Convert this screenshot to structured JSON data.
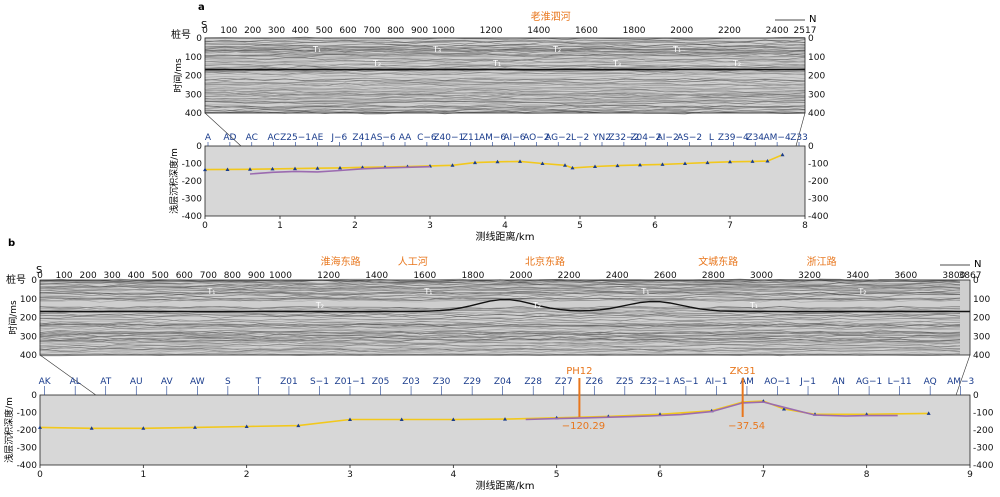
{
  "chart_data": [
    {
      "panel": "a",
      "type": "line",
      "x_axis_label": "测线距离/km",
      "y_axis_label": "浅层沉积深度/m",
      "xlim": [
        0,
        8
      ],
      "ylim": [
        0,
        -400
      ],
      "x_ticks": [
        "0",
        "1",
        "2",
        "3",
        "4",
        "5",
        "6",
        "7",
        "8"
      ],
      "y_ticks": [
        "0",
        "-100",
        "-200",
        "-300",
        "-400"
      ],
      "seismic_axis_label": "时间/ms",
      "seismic_y_ticks": [
        "0",
        "100",
        "200",
        "300",
        "400"
      ],
      "station_axis_label": "桩号",
      "station_ticks": [
        "0",
        "100",
        "200",
        "300",
        "400",
        "500",
        "600",
        "700",
        "800",
        "900",
        "1000",
        "1200",
        "1400",
        "1600",
        "1800",
        "2000",
        "2200",
        "2400",
        "2517"
      ],
      "end_labels": {
        "left": "S",
        "right": "N"
      },
      "road_annotations": [
        {
          "label": "老淮泗河",
          "station": 1450
        }
      ],
      "horizon_labels": [
        "T₁",
        "T₂",
        "T₃",
        "T₁",
        "T₂",
        "T₃",
        "T₁",
        "T₂"
      ],
      "borehole_labels": [
        "A",
        "AD",
        "AC",
        "AC",
        "Z25−1",
        "AE",
        "J−6",
        "Z41",
        "AS−6",
        "AA",
        "C−6",
        "Z40−1",
        "Z11",
        "AM−6",
        "AI−6",
        "AO−2",
        "AG−2",
        "L−2",
        "YN2",
        "Z32−2",
        "Z04−2",
        "AI−2",
        "AS−2",
        "L",
        "Z39−4",
        "Z34",
        "AM−4",
        "Z33"
      ],
      "series": [
        {
          "color": "#f2c81c",
          "x": [
            0,
            0.3,
            0.6,
            0.9,
            1.2,
            1.5,
            1.8,
            2.1,
            2.4,
            2.7,
            3.0,
            3.3,
            3.6,
            3.9,
            4.2,
            4.5,
            4.8,
            4.9,
            5.2,
            5.5,
            5.8,
            6.1,
            6.4,
            6.7,
            7.0,
            7.3,
            7.5,
            7.7
          ],
          "y": [
            -135,
            -134,
            -133,
            -131,
            -129,
            -127,
            -125,
            -122,
            -120,
            -117,
            -114,
            -110,
            -95,
            -90,
            -88,
            -100,
            -110,
            -125,
            -117,
            -112,
            -108,
            -105,
            -100,
            -95,
            -90,
            -88,
            -86,
            -50
          ]
        },
        {
          "color": "#9b6bb0",
          "x": [
            0.6,
            0.9,
            1.2,
            1.5,
            1.8,
            2.1,
            2.4,
            2.7,
            3.0
          ],
          "y": [
            -160,
            -150,
            -145,
            -148,
            -140,
            -130,
            -125,
            -122,
            -118
          ]
        }
      ]
    },
    {
      "panel": "b",
      "type": "line",
      "x_axis_label": "测线距离/km",
      "y_axis_label": "浅层沉积深度/m",
      "xlim": [
        0,
        9
      ],
      "ylim": [
        0,
        -400
      ],
      "x_ticks": [
        "0",
        "1",
        "2",
        "3",
        "4",
        "5",
        "6",
        "7",
        "8",
        "9"
      ],
      "y_ticks": [
        "0",
        "-100",
        "-200",
        "-300",
        "-400"
      ],
      "seismic_axis_label": "时间/ms",
      "seismic_y_ticks": [
        "0",
        "100",
        "200",
        "300",
        "400"
      ],
      "station_axis_label": "桩号",
      "station_ticks": [
        "0",
        "100",
        "200",
        "300",
        "400",
        "500",
        "600",
        "700",
        "800",
        "900",
        "1000",
        "1200",
        "1400",
        "1600",
        "1800",
        "2000",
        "2200",
        "2400",
        "2600",
        "2800",
        "3000",
        "3200",
        "3400",
        "3600",
        "3800",
        "3867"
      ],
      "end_labels": {
        "left": "S",
        "right": "N"
      },
      "road_annotations": [
        {
          "label": "淮海东路",
          "station": 1250
        },
        {
          "label": "人工河",
          "station": 1550
        },
        {
          "label": "北京东路",
          "station": 2100
        },
        {
          "label": "文城东路",
          "station": 2820
        },
        {
          "label": "浙江路",
          "station": 3250
        }
      ],
      "horizon_labels": [
        "T₁",
        "T₂",
        "T₁",
        "T₂",
        "T₁",
        "T₁",
        "T₂"
      ],
      "borehole_labels": [
        "AK",
        "AL",
        "AT",
        "AU",
        "AV",
        "AW",
        "S",
        "T",
        "Z01",
        "S−1",
        "Z01−1",
        "Z05",
        "Z03",
        "Z30",
        "Z29",
        "Z04",
        "Z28",
        "Z27",
        "Z26",
        "Z25",
        "Z32−1",
        "AS−1",
        "AI−1",
        "AM",
        "AO−1",
        "J−1",
        "AN",
        "AG−1",
        "L−11",
        "AQ",
        "AM−3"
      ],
      "boreholes_highlight": [
        {
          "name": "PH12",
          "x": 5.22,
          "depth_label": "−120.29"
        },
        {
          "name": "ZK31",
          "x": 6.8,
          "depth_label": "−37.54"
        }
      ],
      "series": [
        {
          "color": "#f2c81c",
          "x": [
            0,
            0.5,
            1,
            1.5,
            2,
            2.5,
            3,
            3.5,
            4,
            4.5,
            5,
            5.5,
            6,
            6.5,
            6.8,
            7.0,
            7.2,
            7.5,
            8,
            8.6
          ],
          "y": [
            -185,
            -190,
            -190,
            -185,
            -180,
            -175,
            -140,
            -140,
            -140,
            -138,
            -130,
            -122,
            -110,
            -90,
            -40,
            -35,
            -80,
            -110,
            -110,
            -105
          ]
        },
        {
          "color": "#9b6bb0",
          "x": [
            4.7,
            5.0,
            5.3,
            5.6,
            5.9,
            6.2,
            6.5,
            6.8,
            7.0,
            7.2,
            7.5,
            7.8,
            8.0,
            8.3
          ],
          "y": [
            -140,
            -135,
            -130,
            -125,
            -120,
            -112,
            -95,
            -45,
            -40,
            -70,
            -115,
            -120,
            -118,
            -118
          ]
        }
      ]
    }
  ],
  "panel_labels": {
    "a": "a",
    "b": "b"
  },
  "colors": {
    "curve_surface": "#f2c81c",
    "curve_base": "#9b6bb0",
    "label_blue": "#1a3c8c",
    "annotation_orange": "#e8761c"
  }
}
